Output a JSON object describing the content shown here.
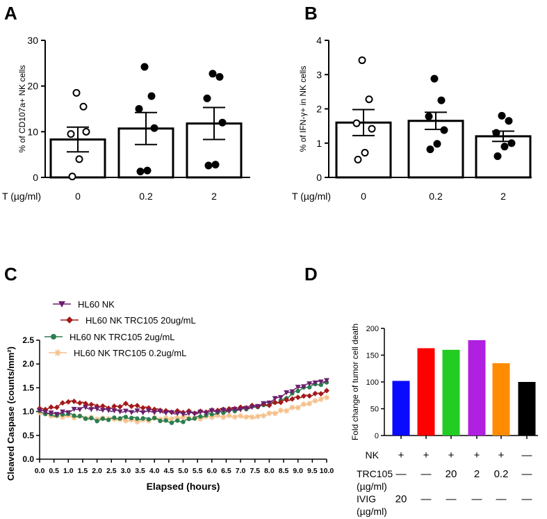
{
  "colors": {
    "ink": "#000000",
    "purple_series": "#6b1f6e",
    "red_series": "#a31a1a",
    "green_series": "#2e7d4f",
    "peach_series": "#f5c08a",
    "bar_blue": "#0a0aff",
    "bar_red": "#ff0000",
    "bar_green": "#22cc22",
    "bar_purple": "#b020e0",
    "bar_orange": "#ff8c00",
    "bar_black": "#000000"
  },
  "chart_data": [
    {
      "panel": "A",
      "type": "bar",
      "ylabel": "% of CD107a+ NK cells",
      "xlabel_prefix": "T (µg/ml)",
      "categories": [
        "0",
        "0.2",
        "2"
      ],
      "values": [
        8.3,
        10.7,
        11.8
      ],
      "sem": [
        2.7,
        3.5,
        3.5
      ],
      "ylim": [
        0,
        30
      ],
      "yticks": [
        "0",
        "10",
        "20",
        "30"
      ],
      "points": [
        {
          "group": 0,
          "filled": false,
          "values": [
            18.5,
            15.5,
            9.5,
            10.0,
            4.0,
            0.2
          ]
        },
        {
          "group": 1,
          "filled": true,
          "values": [
            24.2,
            17.8,
            15.0,
            10.8,
            1.5,
            1.3
          ]
        },
        {
          "group": 2,
          "filled": true,
          "values": [
            22.7,
            22.0,
            17.3,
            12.0,
            2.8,
            2.6
          ]
        }
      ]
    },
    {
      "panel": "B",
      "type": "bar",
      "ylabel": "% of IFN-γ+ in NK cells",
      "xlabel_prefix": "T (µg/ml)",
      "categories": [
        "0",
        "0.2",
        "2"
      ],
      "values": [
        1.6,
        1.65,
        1.2
      ],
      "sem": [
        0.38,
        0.25,
        0.15
      ],
      "ylim": [
        0,
        4
      ],
      "yticks": [
        "0",
        "1",
        "2",
        "3",
        "4"
      ],
      "points": [
        {
          "group": 0,
          "filled": false,
          "values": [
            3.42,
            2.28,
            1.58,
            1.42,
            0.72,
            0.52
          ]
        },
        {
          "group": 1,
          "filled": true,
          "values": [
            2.88,
            2.25,
            1.78,
            1.38,
            0.98,
            0.82
          ]
        },
        {
          "group": 2,
          "filled": true,
          "values": [
            1.8,
            1.65,
            1.3,
            1.0,
            0.9,
            0.62
          ]
        }
      ]
    },
    {
      "panel": "C",
      "type": "line",
      "xlabel": "Elapsed (hours)",
      "ylabel": "Cleaved Caspase (counts/mm²)",
      "xlim": [
        0,
        10
      ],
      "ylim": [
        0,
        2.5
      ],
      "xticks": [
        "0.0",
        "0.5",
        "1.0",
        "1.5",
        "2.0",
        "2.5",
        "3.0",
        "3.5",
        "4.0",
        "4.5",
        "5.0",
        "5.5",
        "6.0",
        "6.5",
        "7.0",
        "7.5",
        "8.0",
        "8.5",
        "9.0",
        "9.5",
        "10.0"
      ],
      "yticks": [
        "0.0",
        "0.5",
        "1.0",
        "1.5",
        "2.0",
        "2.5"
      ],
      "series": [
        {
          "name": "HL60 NK",
          "color": "#6b1f6e",
          "marker": "triangle-down",
          "x": [
            0,
            0.5,
            1,
            1.5,
            2,
            2.5,
            3,
            3.5,
            4,
            4.5,
            5,
            5.5,
            6,
            6.5,
            7,
            7.5,
            8,
            8.5,
            9,
            9.5,
            10
          ],
          "y": [
            1.02,
            0.95,
            1.0,
            1.08,
            1.05,
            1.02,
            1.0,
            1.0,
            1.0,
            0.98,
            0.95,
            0.97,
            1.0,
            1.02,
            1.05,
            1.1,
            1.2,
            1.35,
            1.5,
            1.6,
            1.65
          ]
        },
        {
          "name": "HL60 NK TRC105 20ug/mL",
          "color": "#a31a1a",
          "marker": "diamond",
          "x": [
            0,
            0.5,
            1,
            1.5,
            2,
            2.5,
            3,
            3.5,
            4,
            4.5,
            5,
            5.5,
            6,
            6.5,
            7,
            7.5,
            8,
            8.5,
            9,
            9.5,
            10
          ],
          "y": [
            1.05,
            1.08,
            1.22,
            1.18,
            1.12,
            1.08,
            1.15,
            1.1,
            1.05,
            1.0,
            1.0,
            0.98,
            1.02,
            1.05,
            1.08,
            1.12,
            1.15,
            1.22,
            1.3,
            1.35,
            1.42
          ]
        },
        {
          "name": "HL60 NK TRC105 2ug/mL",
          "color": "#2e7d4f",
          "marker": "circle",
          "x": [
            0,
            0.5,
            1,
            1.5,
            2,
            2.5,
            3,
            3.5,
            4,
            4.5,
            5,
            5.5,
            6,
            6.5,
            7,
            7.5,
            8,
            8.5,
            9,
            9.5,
            10
          ],
          "y": [
            1.0,
            0.92,
            0.95,
            0.88,
            0.82,
            0.85,
            0.88,
            0.85,
            0.85,
            0.78,
            0.8,
            0.88,
            0.95,
            1.0,
            1.05,
            1.1,
            1.15,
            1.25,
            1.45,
            1.55,
            1.6
          ]
        },
        {
          "name": "HL60 NK TRC105 0.2ug/mL",
          "color": "#f5c08a",
          "marker": "star",
          "x": [
            0,
            0.5,
            1,
            1.5,
            2,
            2.5,
            3,
            3.5,
            4,
            4.5,
            5,
            5.5,
            6,
            6.5,
            7,
            7.5,
            8,
            8.5,
            9,
            9.5,
            10
          ],
          "y": [
            0.98,
            0.9,
            0.9,
            0.88,
            0.85,
            0.85,
            0.82,
            0.8,
            0.85,
            0.85,
            0.88,
            0.85,
            0.9,
            0.9,
            0.9,
            0.88,
            0.95,
            1.02,
            1.1,
            1.2,
            1.3
          ]
        }
      ]
    },
    {
      "panel": "D",
      "type": "bar",
      "ylabel": "Fold change of tumor cell death",
      "ylim": [
        0,
        200
      ],
      "yticks": [
        "0",
        "50",
        "100",
        "150",
        "200"
      ],
      "values": [
        102,
        163,
        160,
        178,
        135,
        100
      ],
      "bar_colors": [
        "#0a0aff",
        "#ff0000",
        "#22cc22",
        "#b020e0",
        "#ff8c00",
        "#000000"
      ],
      "table": {
        "rows": [
          {
            "label": "NK",
            "cells": [
              "+",
              "+",
              "+",
              "+",
              "+",
              "—"
            ]
          },
          {
            "label": "TRC105",
            "sublabel": "(µg/ml)",
            "cells": [
              "—",
              "—",
              "20",
              "2",
              "0.2",
              "—"
            ]
          },
          {
            "label": "IVIG",
            "sublabel": "(µg/ml)",
            "cells": [
              "20",
              "—",
              "—",
              "—",
              "—",
              "—"
            ]
          }
        ]
      }
    }
  ],
  "panel_labels": [
    "A",
    "B",
    "C",
    "D"
  ]
}
